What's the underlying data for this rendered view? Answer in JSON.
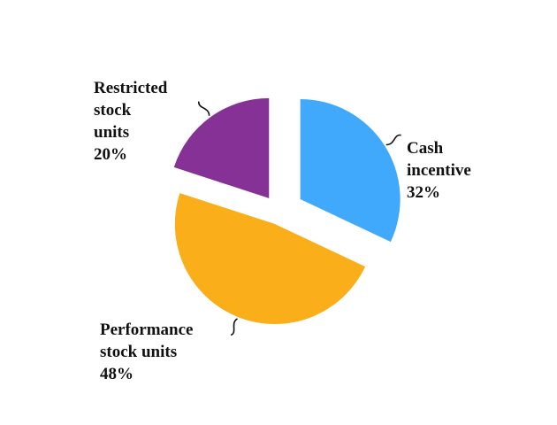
{
  "chart_data": {
    "type": "pie",
    "title": "",
    "slices": [
      {
        "label": [
          "Cash",
          "incentive"
        ],
        "value": 32,
        "value_label": "32%",
        "color": "#41A9FC"
      },
      {
        "label": [
          "Performance",
          "stock units"
        ],
        "value": 48,
        "value_label": "48%",
        "color": "#FAAE19"
      },
      {
        "label": [
          "Restricted",
          "stock",
          "units"
        ],
        "value": 20,
        "value_label": "20%",
        "color": "#863195"
      }
    ],
    "start_angle_deg": 0,
    "direction": "clockwise",
    "exploded": true,
    "leader_lines": true
  }
}
